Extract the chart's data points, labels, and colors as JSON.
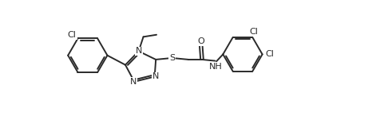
{
  "background_color": "#ffffff",
  "line_color": "#2a2a2a",
  "line_width": 1.4,
  "font_size": 7.5,
  "figsize": [
    4.76,
    1.46
  ],
  "dpi": 100,
  "xlim": [
    -0.2,
    10.2
  ],
  "ylim": [
    -2.2,
    2.2
  ]
}
